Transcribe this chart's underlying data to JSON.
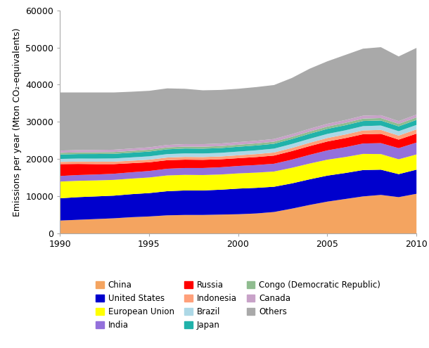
{
  "years": [
    1990,
    1991,
    1992,
    1993,
    1994,
    1995,
    1996,
    1997,
    1998,
    1999,
    2000,
    2001,
    2002,
    2003,
    2004,
    2005,
    2006,
    2007,
    2008,
    2009,
    2010
  ],
  "series": {
    "China": [
      3500,
      3700,
      3900,
      4100,
      4400,
      4600,
      4900,
      5000,
      5000,
      5100,
      5200,
      5400,
      5800,
      6700,
      7700,
      8600,
      9300,
      10000,
      10400,
      9800,
      10700
    ],
    "United States": [
      6000,
      6100,
      6100,
      6100,
      6200,
      6300,
      6500,
      6600,
      6600,
      6700,
      6900,
      6900,
      6800,
      6800,
      6900,
      7000,
      7000,
      7100,
      6800,
      6200,
      6500
    ],
    "European Union": [
      4500,
      4400,
      4300,
      4250,
      4200,
      4200,
      4250,
      4200,
      4150,
      4100,
      4100,
      4100,
      4100,
      4200,
      4250,
      4300,
      4300,
      4350,
      4200,
      4000,
      4100
    ],
    "India": [
      1500,
      1550,
      1600,
      1650,
      1700,
      1750,
      1800,
      1850,
      1900,
      1950,
      2000,
      2050,
      2100,
      2200,
      2350,
      2500,
      2650,
      2800,
      2950,
      3000,
      3200
    ],
    "Russia": [
      3200,
      3000,
      2800,
      2600,
      2450,
      2350,
      2300,
      2250,
      2200,
      2150,
      2100,
      2150,
      2200,
      2300,
      2350,
      2400,
      2450,
      2500,
      2500,
      2300,
      2400
    ],
    "Indonesia": [
      600,
      620,
      640,
      660,
      680,
      700,
      720,
      740,
      750,
      760,
      780,
      800,
      830,
      860,
      900,
      940,
      980,
      1020,
      1060,
      1080,
      1150
    ],
    "Brazil": [
      800,
      820,
      840,
      860,
      880,
      900,
      920,
      940,
      960,
      980,
      1000,
      1020,
      1040,
      1060,
      1080,
      1100,
      1120,
      1160,
      1180,
      1190,
      1200
    ],
    "Japan": [
      1200,
      1220,
      1240,
      1250,
      1260,
      1280,
      1300,
      1320,
      1300,
      1280,
      1300,
      1300,
      1310,
      1330,
      1350,
      1360,
      1370,
      1380,
      1350,
      1300,
      1350
    ],
    "Congo (Democratic Republic)": [
      450,
      460,
      470,
      480,
      490,
      500,
      510,
      520,
      530,
      540,
      550,
      560,
      570,
      580,
      600,
      620,
      630,
      650,
      660,
      670,
      680
    ],
    "Canada": [
      600,
      610,
      620,
      630,
      640,
      650,
      660,
      670,
      680,
      690,
      700,
      710,
      720,
      730,
      740,
      750,
      760,
      780,
      770,
      740,
      760
    ],
    "Others": [
      15650,
      15520,
      15490,
      15420,
      15300,
      15220,
      15240,
      14900,
      14510,
      14430,
      14370,
      14460,
      14530,
      15140,
      16180,
      16830,
      17540,
      18060,
      18330,
      17420,
      17960
    ]
  },
  "colors": {
    "China": "#F4A460",
    "United States": "#0000CD",
    "European Union": "#FFFF00",
    "India": "#9370DB",
    "Russia": "#FF0000",
    "Indonesia": "#FFA07A",
    "Brazil": "#ADD8E6",
    "Japan": "#20B2AA",
    "Congo (Democratic Republic)": "#8FBC8F",
    "Canada": "#C8A2C8",
    "Others": "#A9A9A9"
  },
  "ylabel": "Emissions per year (Mton CO₂-equivalents)",
  "ylim": [
    0,
    60000
  ],
  "yticks": [
    0,
    10000,
    20000,
    30000,
    40000,
    50000,
    60000
  ],
  "xlim": [
    1990,
    2010
  ],
  "xticks": [
    1990,
    1995,
    2000,
    2005,
    2010
  ],
  "legend_order": [
    "China",
    "United States",
    "European Union",
    "India",
    "Russia",
    "Indonesia",
    "Brazil",
    "Japan",
    "Congo (Democratic Republic)",
    "Canada",
    "Others"
  ],
  "legend_cols_order": [
    [
      "China",
      "India",
      "Brazil",
      "Canada"
    ],
    [
      "United States",
      "Russia",
      "Japan",
      "Others"
    ],
    [
      "European Union",
      "Indonesia",
      "Congo (Democratic Republic)"
    ]
  ],
  "background_color": "#FFFFFF"
}
